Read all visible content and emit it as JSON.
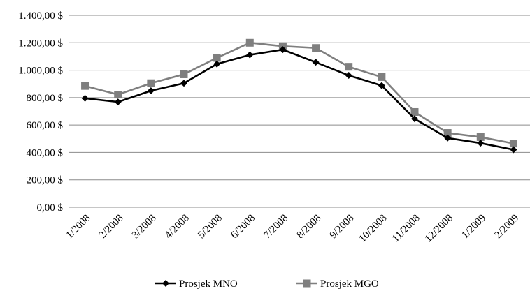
{
  "chart_data": {
    "type": "line",
    "categories": [
      "1/2008",
      "2/2008",
      "3/2008",
      "4/2008",
      "5/2008",
      "6/2008",
      "7/2008",
      "8/2008",
      "9/2008",
      "10/2008",
      "11/2008",
      "12/2008",
      "1/2009",
      "2/2009"
    ],
    "series": [
      {
        "name": "Prosjek MNO",
        "color": "#000000",
        "marker": "diamond",
        "values": [
          795,
          768,
          850,
          905,
          1045,
          1112,
          1150,
          1058,
          962,
          888,
          645,
          505,
          468,
          420
        ]
      },
      {
        "name": "Prosjek MGO",
        "color": "#7f7f7f",
        "marker": "square",
        "values": [
          885,
          822,
          905,
          970,
          1090,
          1200,
          1175,
          1162,
          1025,
          950,
          695,
          542,
          512,
          465
        ]
      }
    ],
    "y_ticks": [
      "0,00 $",
      "200,00 $",
      "400,00 $",
      "600,00 $",
      "800,00 $",
      "1.000,00 $",
      "1.200,00 $",
      "1.400,00 $"
    ],
    "ylim": [
      0,
      1400
    ],
    "y_step": 200,
    "grid": "horizontal",
    "legend_position": "bottom"
  }
}
